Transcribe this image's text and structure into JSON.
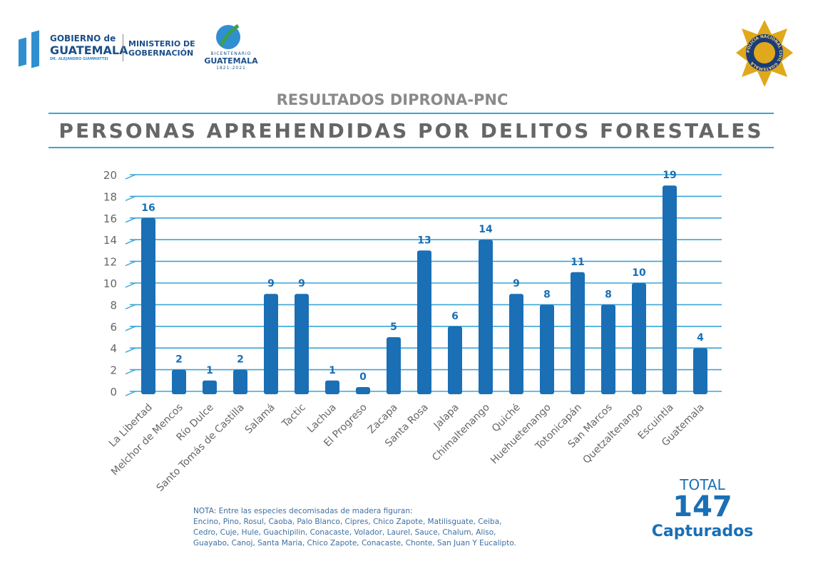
{
  "header": {
    "gov_line1": "GOBIERNO de",
    "gov_line2": "GUATEMALA",
    "gov_line3": "DR. ALEJANDRO GIAMMATTEI",
    "ministry_line1": "MINISTERIO DE",
    "ministry_line2": "GOBERNACIÓN",
    "bicentenario_line1": "BICENTENARIO",
    "bicentenario_line2": "GUATEMALA",
    "bicentenario_line3": "1821-2021",
    "police_badge": "POLICÍA NACIONAL CIVIL GUATEMALA"
  },
  "subtitle": "RESULTADOS  DIPRONA-PNC",
  "title": "PERSONAS APREHENDIDAS POR DELITOS FORESTALES",
  "colors": {
    "bar": "#1a6fb5",
    "grid": "#3aa5d6",
    "title": "#666666",
    "accent": "#1a6fb5"
  },
  "chart_data": {
    "type": "bar",
    "title": "",
    "xlabel": "",
    "ylabel": "",
    "ylim": [
      0,
      20
    ],
    "yticks": [
      0,
      2,
      4,
      6,
      8,
      10,
      12,
      14,
      16,
      18,
      20
    ],
    "grid": true,
    "categories": [
      "La Libertad",
      "Melchor de Mencos",
      "Río Dulce",
      "Santo Tomás de Castilla",
      "Salamá",
      "Tactic",
      "Lachua",
      "El Progreso",
      "Zacapa",
      "Santa Rosa",
      "Jalapa",
      "Chimaltenango",
      "Quiché",
      "Huehuetenango",
      "Totonicapán",
      "San Marcos",
      "Quetzaltenango",
      "Escuintla",
      "Guatemala"
    ],
    "values": [
      16,
      2,
      1,
      2,
      9,
      9,
      1,
      0,
      5,
      13,
      6,
      14,
      9,
      8,
      11,
      8,
      10,
      19,
      4
    ]
  },
  "total": {
    "label": "TOTAL",
    "value": "147",
    "unit": "Capturados"
  },
  "note": {
    "line1": "NOTA: Entre las especies decomisadas de madera figuran:",
    "line2": "Encino, Pino, Rosul, Caoba, Palo Blanco, Cipres, Chico Zapote, Matilisguate, Ceiba,",
    "line3": "Cedro, Cuje, Hule, Guachipilin, Conacaste, Volador, Laurel, Sauce, Chalum, Aliso,",
    "line4": "Guayabo, Canoj, Santa Maria, Chico Zapote, Conacaste, Chonte, San Juan Y Eucalipto."
  }
}
